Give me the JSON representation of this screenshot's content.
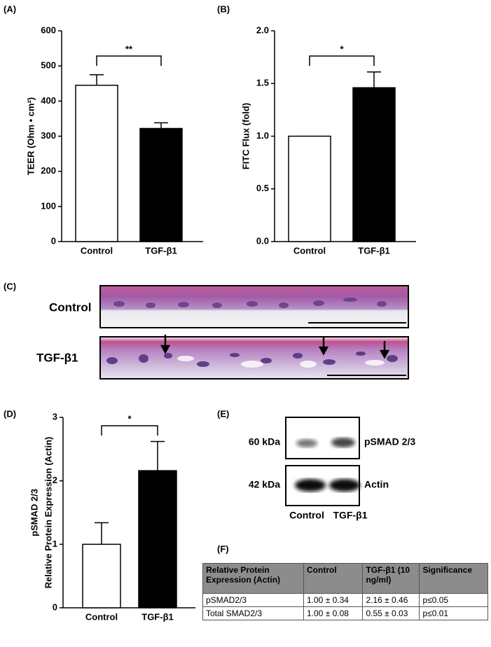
{
  "panels": {
    "a": "(A)",
    "b": "(B)",
    "c": "(C)",
    "d": "(D)",
    "e": "(E)",
    "f": "(F)"
  },
  "chart_data": [
    {
      "type": "bar",
      "y_label": "TEER (Ohm • cm²)",
      "categories": [
        "Control",
        "TGF-β1"
      ],
      "values": [
        445,
        322
      ],
      "errors": [
        30,
        16
      ],
      "colors": [
        "#ffffff",
        "#000000"
      ],
      "ylim": [
        0,
        600
      ],
      "yticks": [
        0,
        100,
        200,
        300,
        400,
        500,
        600
      ],
      "significance": "**"
    },
    {
      "type": "bar",
      "y_label": "FITC Flux (fold)",
      "categories": [
        "Control",
        "TGF-β1"
      ],
      "values": [
        1.0,
        1.46
      ],
      "errors": [
        0,
        0.15
      ],
      "colors": [
        "#ffffff",
        "#000000"
      ],
      "ylim": [
        0,
        2
      ],
      "yticks": [
        {
          "value": 0,
          "label": "0.0"
        },
        {
          "value": 0.5,
          "label": "0.5"
        },
        {
          "value": 1,
          "label": "1.0"
        },
        {
          "value": 1.5,
          "label": "1.5"
        },
        {
          "value": 2,
          "label": "2.0"
        }
      ],
      "significance": "*"
    },
    {
      "type": "bar",
      "y_label": [
        "pSMAD 2/3",
        "Relative  Protein Expression (Actin)"
      ],
      "categories": [
        "Control",
        "TGF-β1"
      ],
      "values": [
        1.0,
        2.16
      ],
      "errors": [
        0.34,
        0.46
      ],
      "colors": [
        "#ffffff",
        "#000000"
      ],
      "ylim": [
        0,
        3
      ],
      "yticks": [
        0,
        1,
        2,
        3
      ],
      "significance": "*"
    }
  ],
  "histology": {
    "rows": [
      "Control",
      "TGF-β1"
    ]
  },
  "blot": {
    "bands": [
      {
        "size": "60 kDa",
        "protein": "pSMAD 2/3"
      },
      {
        "size": "42 kDa",
        "protein": "Actin"
      }
    ],
    "lanes": [
      "Control",
      "TGF-β1"
    ]
  },
  "table": {
    "header": [
      "Relative Protein Expression (Actin)",
      "Control",
      "TGF-β1 (10 ng/ml)",
      "Significance"
    ],
    "rows": [
      [
        "pSMAD2/3",
        "1.00 ± 0.34",
        "2.16 ± 0.46",
        "p≤0.05"
      ],
      [
        "Total SMAD2/3",
        "1.00 ± 0.08",
        "0.55 ± 0.03",
        "p≤0.01"
      ]
    ]
  }
}
